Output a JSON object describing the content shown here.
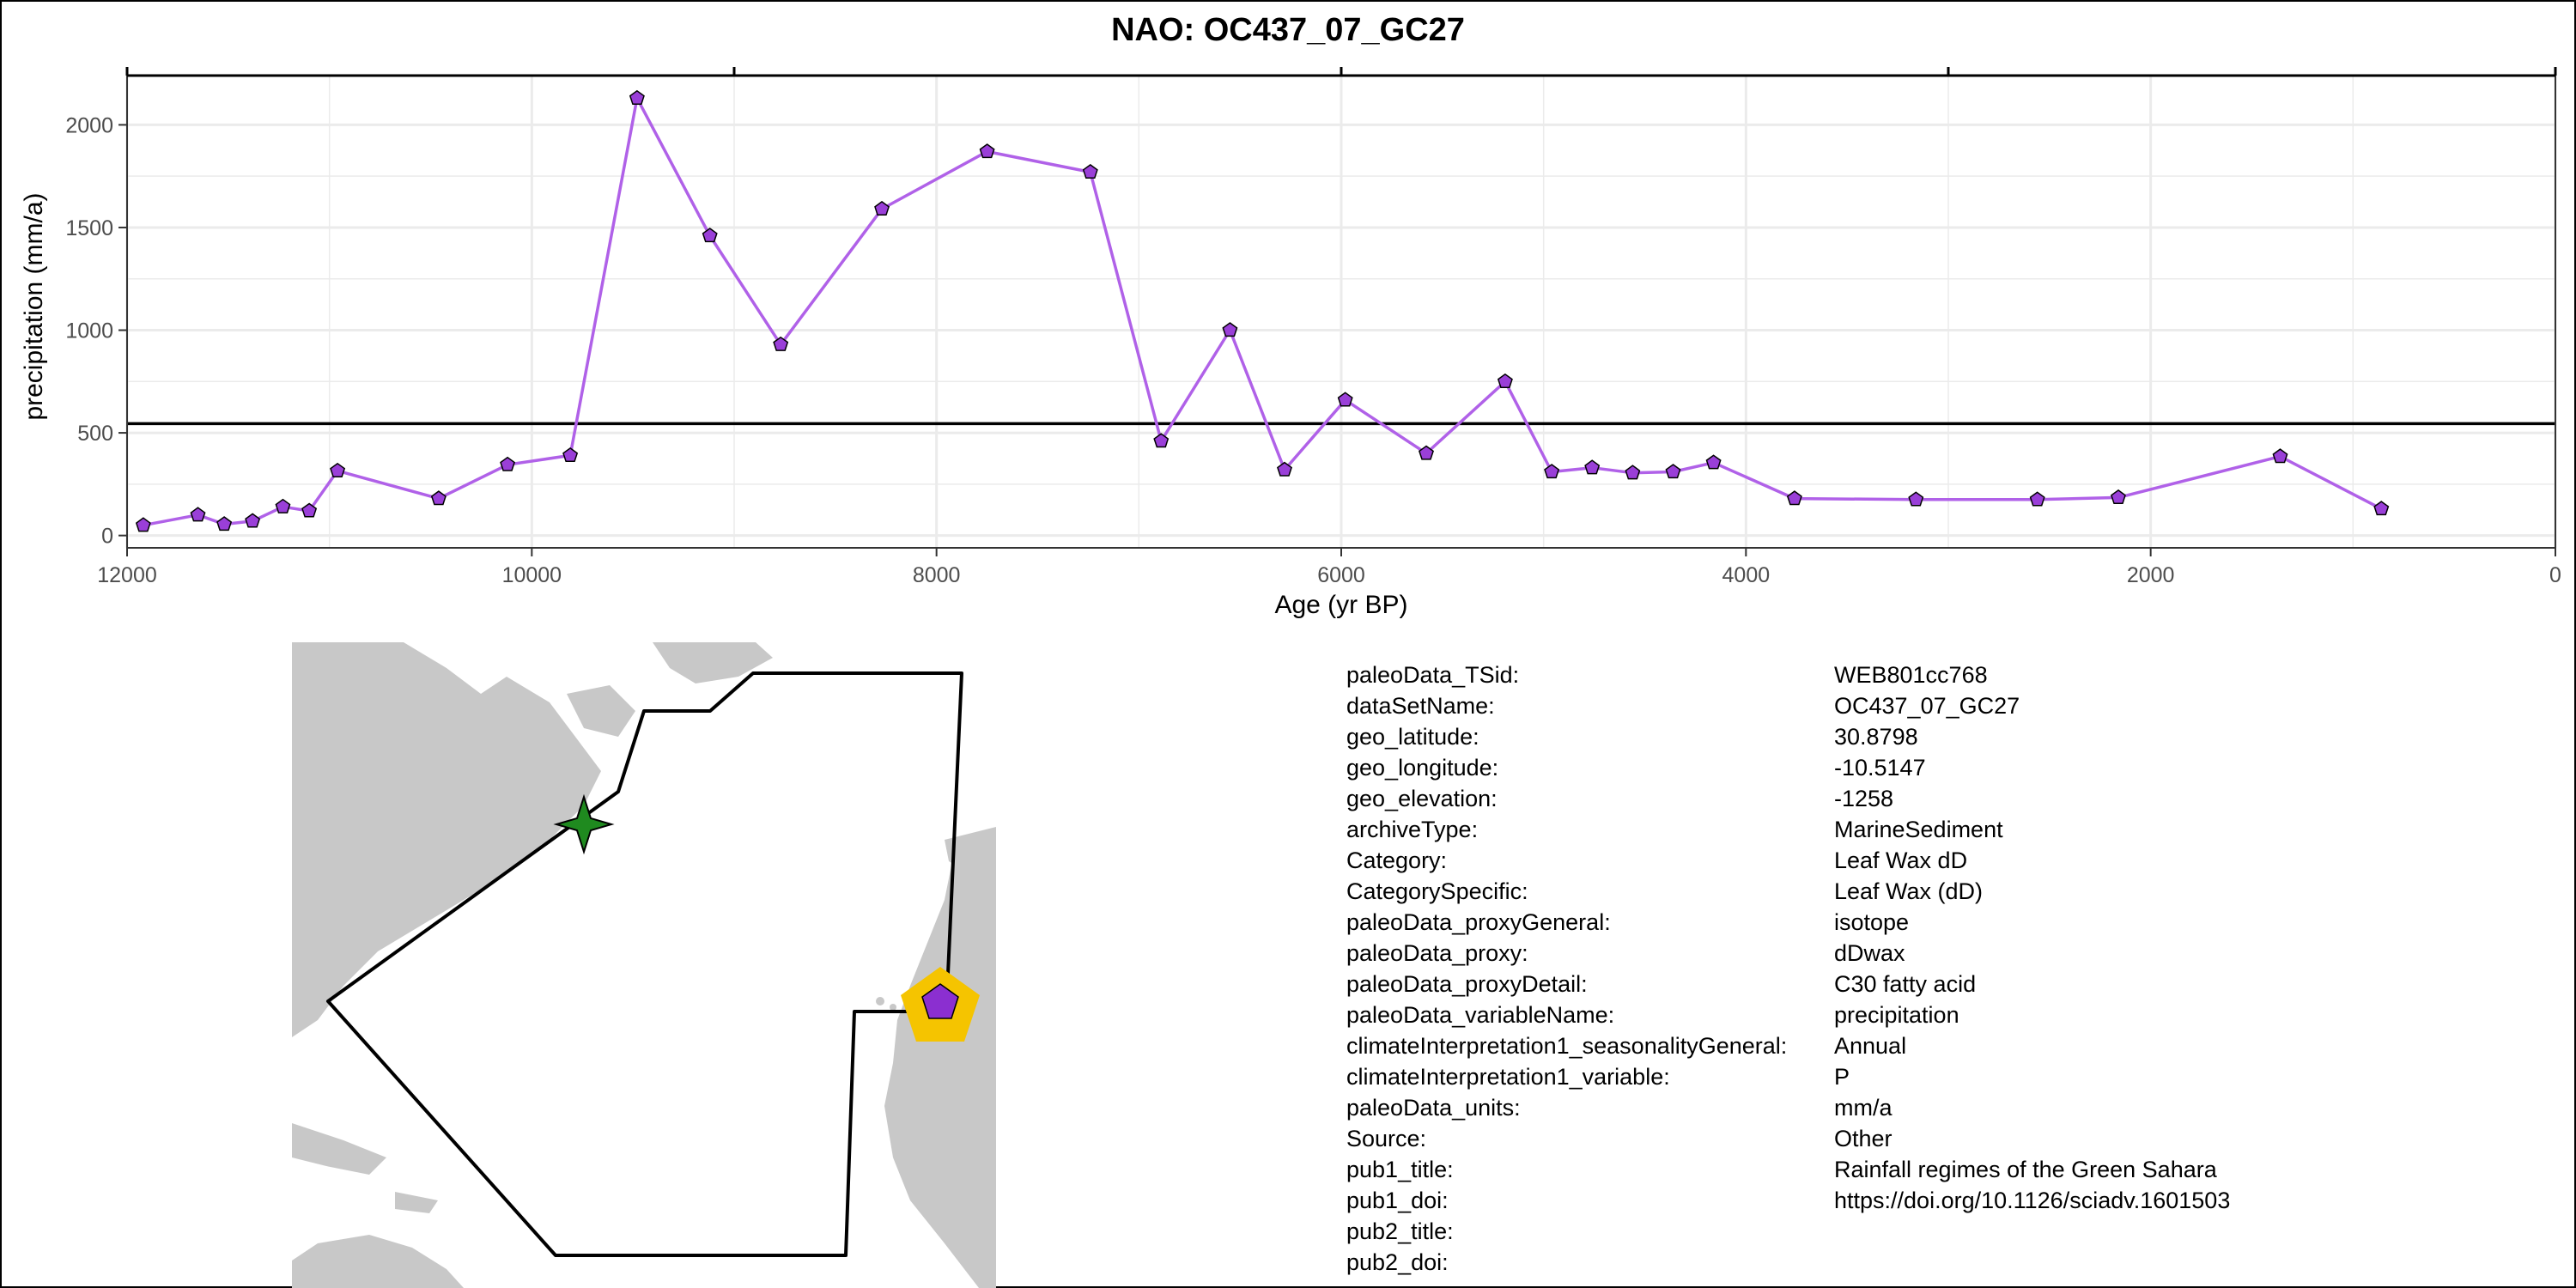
{
  "chart_data": {
    "type": "line",
    "title": "NAO: OC437_07_GC27",
    "xlabel": "Age (yr BP)",
    "ylabel": "precipitation (mm/a)",
    "xlim": [
      12000,
      0
    ],
    "x_reversed": true,
    "ylim": [
      -60,
      2240
    ],
    "x_ticks": [
      12000,
      10000,
      8000,
      6000,
      4000,
      2000,
      0
    ],
    "y_ticks": [
      0,
      500,
      1000,
      1500,
      2000
    ],
    "grid": true,
    "legend": "none",
    "reference_line": 545,
    "series": [
      {
        "x": [
          11920,
          11650,
          11520,
          11380,
          11230,
          11100,
          10960,
          10460,
          10120,
          9810,
          9480,
          9120,
          8770,
          8270,
          7750,
          7240,
          6890,
          6550,
          6280,
          5980,
          5580,
          5190,
          4960,
          4760,
          4560,
          4360,
          4160,
          3760,
          3160,
          2560,
          2160,
          1360,
          860
        ],
        "y": [
          50,
          100,
          55,
          70,
          140,
          120,
          315,
          180,
          345,
          390,
          2130,
          1460,
          930,
          1590,
          1870,
          1770,
          460,
          1000,
          320,
          660,
          400,
          750,
          310,
          330,
          305,
          310,
          355,
          180,
          175,
          175,
          185,
          385,
          130
        ]
      }
    ]
  },
  "colors": {
    "line": "#b061e8",
    "marker_fill": "#9a3fd8",
    "reference_line": "#000000",
    "grid": "#ebebeb",
    "land": "#c8c8c8",
    "star": "#1f8a1f",
    "site_ring": "#f5c400",
    "site_pentagon": "#8b2fd0"
  },
  "map": {
    "site_marker": "pentagon",
    "region_marker": "star-icon"
  },
  "info": [
    {
      "key": "paleoData_TSid:",
      "value": "WEB801cc768"
    },
    {
      "key": "dataSetName:",
      "value": "OC437_07_GC27"
    },
    {
      "key": "geo_latitude:",
      "value": "30.8798"
    },
    {
      "key": "geo_longitude:",
      "value": "-10.5147"
    },
    {
      "key": "geo_elevation:",
      "value": "-1258"
    },
    {
      "key": "archiveType:",
      "value": "MarineSediment"
    },
    {
      "key": "Category:",
      "value": "Leaf Wax dD"
    },
    {
      "key": "CategorySpecific:",
      "value": "Leaf Wax (dD)"
    },
    {
      "key": "paleoData_proxyGeneral:",
      "value": "isotope"
    },
    {
      "key": "paleoData_proxy:",
      "value": "dDwax"
    },
    {
      "key": "paleoData_proxyDetail:",
      "value": "C30 fatty acid"
    },
    {
      "key": "paleoData_variableName:",
      "value": "precipitation"
    },
    {
      "key": "climateInterpretation1_seasonalityGeneral:",
      "value": "Annual"
    },
    {
      "key": "climateInterpretation1_variable:",
      "value": "P"
    },
    {
      "key": "paleoData_units:",
      "value": "mm/a"
    },
    {
      "key": "Source:",
      "value": "Other"
    },
    {
      "key": "pub1_title:",
      "value": "Rainfall regimes of the Green Sahara"
    },
    {
      "key": "pub1_doi:",
      "value": "https://doi.org/10.1126/sciadv.1601503"
    },
    {
      "key": "pub2_title:",
      "value": ""
    },
    {
      "key": "pub2_doi:",
      "value": ""
    }
  ]
}
